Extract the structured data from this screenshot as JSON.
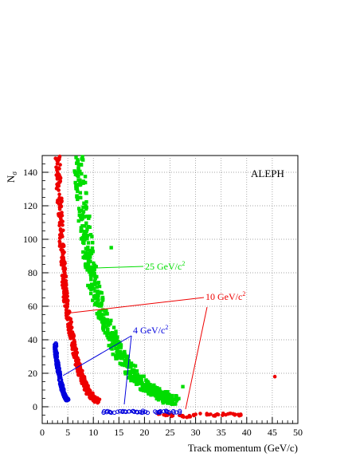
{
  "chart_data": {
    "type": "scatter",
    "xlabel": "Track momentum (GeV/c)",
    "ylabel": "Nσ",
    "xlim": [
      0,
      50
    ],
    "ylim": [
      -10,
      150
    ],
    "xticks": [
      0,
      5,
      10,
      15,
      20,
      25,
      30,
      35,
      40,
      45,
      50
    ],
    "yticks": [
      0,
      20,
      40,
      60,
      80,
      100,
      120,
      140
    ],
    "grid": true,
    "annotations": {
      "experiment": "ALEPH",
      "label_25": "25 GeV/c",
      "label_10": "10 GeV/c",
      "label_4": "4 GeV/c",
      "superscript": "2"
    },
    "colors": {
      "25": "#00dd00",
      "10": "#ee0000",
      "4": "#0000dd"
    },
    "series": [
      {
        "mass": "25 GeV/c2",
        "marker": "square",
        "color": "#00dd00",
        "band": [
          [
            7.0,
            150
          ],
          [
            7.5,
            135
          ],
          [
            8.0,
            118
          ],
          [
            8.5,
            104
          ],
          [
            9.0,
            92
          ],
          [
            9.5,
            83
          ],
          [
            10.0,
            75
          ],
          [
            11.0,
            64
          ],
          [
            12.0,
            54
          ],
          [
            13.0,
            46
          ],
          [
            14.0,
            39
          ],
          [
            15.0,
            33
          ],
          [
            16.0,
            28
          ],
          [
            17.0,
            23
          ],
          [
            18.0,
            19
          ],
          [
            19.0,
            16
          ],
          [
            20.0,
            13
          ],
          [
            21.0,
            11
          ],
          [
            22.0,
            9
          ],
          [
            23.0,
            7
          ],
          [
            24.0,
            6
          ],
          [
            25.0,
            4.5
          ],
          [
            26.0,
            3.5
          ]
        ],
        "outliers": [
          [
            13.5,
            95
          ],
          [
            27.5,
            12
          ],
          [
            8.5,
            120
          ]
        ]
      },
      {
        "mass": "10 GeV/c2",
        "marker": "circle",
        "color": "#ee0000",
        "band": [
          [
            3.0,
            150
          ],
          [
            3.2,
            135
          ],
          [
            3.5,
            115
          ],
          [
            3.8,
            97
          ],
          [
            4.0,
            87
          ],
          [
            4.3,
            75
          ],
          [
            4.6,
            65
          ],
          [
            5.0,
            56
          ],
          [
            5.5,
            46
          ],
          [
            6.0,
            38
          ],
          [
            6.5,
            31
          ],
          [
            7.0,
            25
          ],
          [
            7.5,
            20
          ],
          [
            8.0,
            16
          ],
          [
            8.5,
            12
          ],
          [
            9.0,
            9
          ],
          [
            9.5,
            7
          ],
          [
            10.0,
            5
          ],
          [
            11.0,
            3
          ]
        ],
        "outliers": [
          [
            2.9,
            147
          ],
          [
            3.3,
            121
          ],
          [
            45.5,
            18
          ]
        ],
        "flat": [
          [
            22,
            -4
          ],
          [
            25,
            -5
          ],
          [
            28,
            -6
          ],
          [
            31,
            -4
          ],
          [
            34,
            -5
          ],
          [
            37,
            -4
          ],
          [
            39,
            -5
          ]
        ]
      },
      {
        "mass": "4 GeV/c2",
        "marker": "open-circle",
        "color": "#0000dd",
        "band": [
          [
            2.5,
            38
          ],
          [
            2.7,
            31
          ],
          [
            3.0,
            25
          ],
          [
            3.3,
            20
          ],
          [
            3.6,
            15
          ],
          [
            3.9,
            11
          ],
          [
            4.2,
            8
          ],
          [
            4.6,
            5
          ],
          [
            5.0,
            4
          ]
        ],
        "flat": [
          [
            12,
            -3
          ],
          [
            15,
            -3
          ],
          [
            18,
            -3
          ],
          [
            21,
            -3
          ],
          [
            24,
            -3
          ],
          [
            27,
            -3
          ]
        ]
      }
    ]
  }
}
